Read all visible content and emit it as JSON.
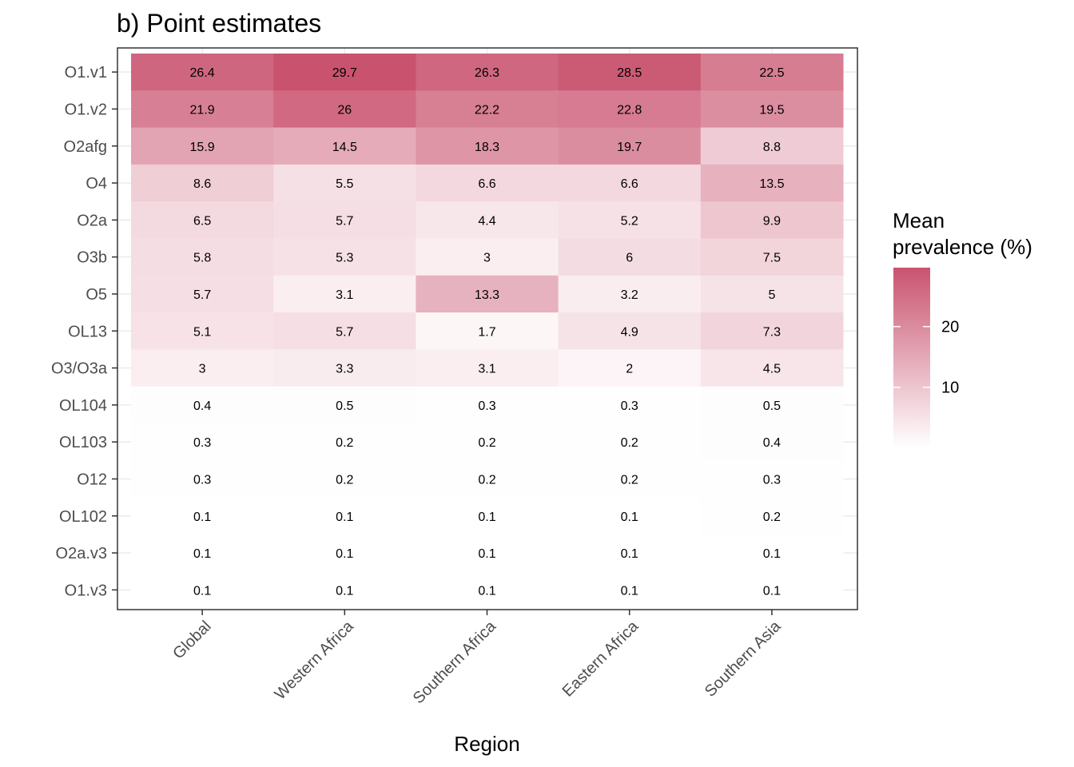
{
  "chart_data": {
    "type": "heatmap",
    "title": "b) Point estimates",
    "xlabel": "Region",
    "ylabel": "",
    "x_categories": [
      "Global",
      "Western Africa",
      "Southern Africa",
      "Eastern Africa",
      "Southern Asia"
    ],
    "y_categories": [
      "O1.v1",
      "O1.v2",
      "O2afg",
      "O4",
      "O2a",
      "O3b",
      "O5",
      "OL13",
      "O3/O3a",
      "OL104",
      "OL103",
      "O12",
      "OL102",
      "O2a.v3",
      "O1.v3"
    ],
    "values": [
      [
        26.4,
        29.7,
        26.3,
        28.5,
        22.5
      ],
      [
        21.9,
        26,
        22.2,
        22.8,
        19.5
      ],
      [
        15.9,
        14.5,
        18.3,
        19.7,
        8.8
      ],
      [
        8.6,
        5.5,
        6.6,
        6.6,
        13.5
      ],
      [
        6.5,
        5.7,
        4.4,
        5.2,
        9.9
      ],
      [
        5.8,
        5.3,
        3,
        6,
        7.5
      ],
      [
        5.7,
        3.1,
        13.3,
        3.2,
        5
      ],
      [
        5.1,
        5.7,
        1.7,
        4.9,
        7.3
      ],
      [
        3,
        3.3,
        3.1,
        2,
        4.5
      ],
      [
        0.4,
        0.5,
        0.3,
        0.3,
        0.5
      ],
      [
        0.3,
        0.2,
        0.2,
        0.2,
        0.4
      ],
      [
        0.3,
        0.2,
        0.2,
        0.2,
        0.3
      ],
      [
        0.1,
        0.1,
        0.1,
        0.1,
        0.2
      ],
      [
        0.1,
        0.1,
        0.1,
        0.1,
        0.1
      ],
      [
        0.1,
        0.1,
        0.1,
        0.1,
        0.1
      ]
    ],
    "legend": {
      "title_lines": [
        "Mean",
        "prevalence (%)"
      ],
      "placement": "right",
      "ticks": [
        10,
        20
      ],
      "range": [
        0.1,
        29.7
      ],
      "color_low": "#ffffff",
      "color_high": "#c9536f"
    },
    "grid": true,
    "panel_border_color": "#333333",
    "grid_color": "#ebebeb"
  }
}
